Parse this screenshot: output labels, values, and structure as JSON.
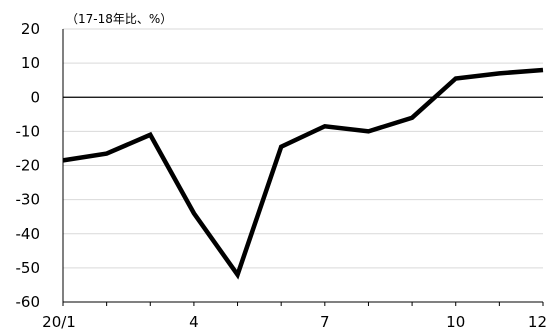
{
  "chart_data": {
    "type": "line",
    "unit_note": "（17-18年比、%）",
    "x_tick_labels": [
      "20/1",
      "4",
      "7",
      "10",
      "12"
    ],
    "x_tick_index": [
      0,
      3,
      6,
      9,
      11
    ],
    "y_ticks": [
      20,
      10,
      0,
      -10,
      -20,
      -30,
      -40,
      -50,
      -60
    ],
    "ylim": [
      -60,
      20
    ],
    "grid": "horizontal",
    "series": [
      {
        "values": [
          -18.5,
          -16.5,
          -11,
          -34,
          -52,
          -14.5,
          -8.5,
          -10,
          -6,
          5.5,
          7,
          8
        ]
      }
    ]
  }
}
